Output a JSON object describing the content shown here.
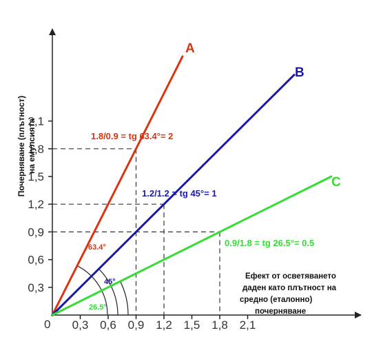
{
  "chart_data": {
    "type": "line",
    "title": "",
    "ylabel_lines": [
      "Почерняване (плътност)",
      "на емулсията"
    ],
    "xlabel_lines": [
      "Ефект от осветяването",
      "даден като плътност на",
      "средно (еталонно)",
      "почерняване"
    ],
    "origin_label": "0",
    "x_ticks": [
      "0,3",
      "0,6",
      "0,9",
      "1,2",
      "1,5",
      "1,8",
      "2,1"
    ],
    "x_tick_values": [
      0.3,
      0.6,
      0.9,
      1.2,
      1.5,
      1.8,
      2.1
    ],
    "y_ticks": [
      "0,3",
      "0,6",
      "0,9",
      "1,2",
      "1,5",
      "1,8",
      "2,1"
    ],
    "y_tick_values": [
      0.3,
      0.6,
      0.9,
      1.2,
      1.5,
      1.8,
      2.1
    ],
    "xlim": [
      0,
      3.3
    ],
    "ylim": [
      0,
      3.1
    ],
    "grid": false,
    "series": [
      {
        "name": "A",
        "color": "#dd3311",
        "x": [
          0,
          1.4
        ],
        "y": [
          0,
          2.8
        ],
        "equation": "1.8/0.9 = tg 63.4°= 2",
        "angle_label": "63.4°",
        "reference": [
          0.9,
          1.8
        ]
      },
      {
        "name": "B",
        "color": "#1a1aa6",
        "x": [
          0,
          2.6
        ],
        "y": [
          0,
          2.6
        ],
        "equation": "1.2/1.2 = tg 45°= 1",
        "angle_label": "45°",
        "reference": [
          1.2,
          1.2
        ]
      },
      {
        "name": "C",
        "color": "#33dd33",
        "x": [
          0,
          3.0
        ],
        "y": [
          0,
          1.5
        ],
        "equation": "0.9/1.8 = tg 26.5°= 0.5",
        "angle_label": "26.5°",
        "reference": [
          1.8,
          0.9
        ]
      }
    ]
  }
}
